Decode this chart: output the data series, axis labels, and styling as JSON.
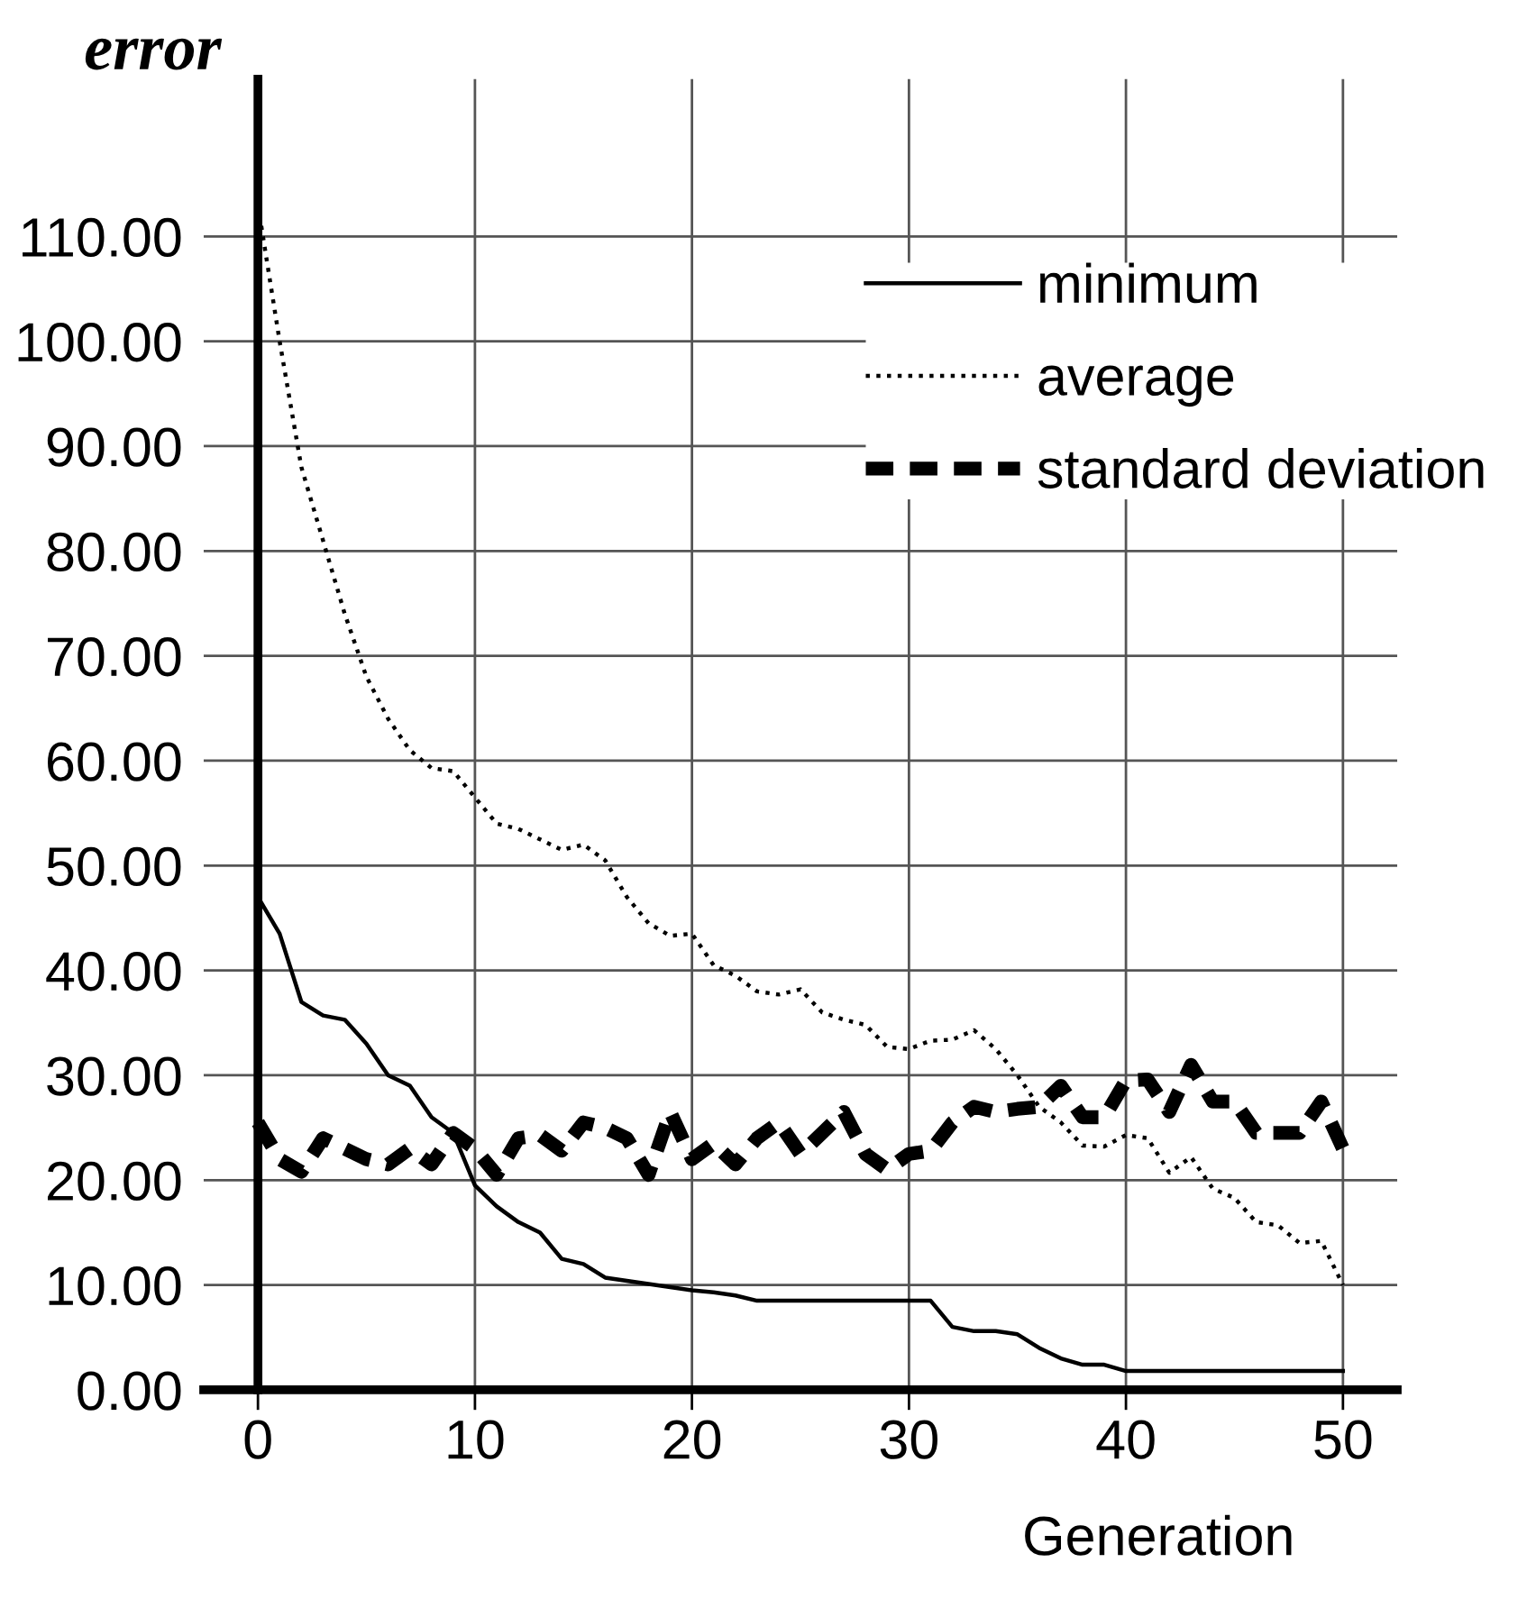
{
  "chart_data": {
    "type": "line",
    "title": "error",
    "xlabel": "Generation",
    "x": [
      0,
      1,
      2,
      3,
      4,
      5,
      6,
      7,
      8,
      9,
      10,
      11,
      12,
      13,
      14,
      15,
      16,
      17,
      18,
      19,
      20,
      21,
      22,
      23,
      24,
      25,
      26,
      27,
      28,
      29,
      30,
      31,
      32,
      33,
      34,
      35,
      36,
      37,
      38,
      39,
      40,
      41,
      42,
      43,
      44,
      45,
      46,
      47,
      48,
      49,
      50
    ],
    "series": [
      {
        "name": "minimum",
        "color": "#000000",
        "line_style": "solid",
        "values": [
          47,
          43.5,
          37,
          35.7,
          35.3,
          33,
          30,
          29,
          26,
          24.5,
          19.5,
          17.5,
          16,
          15,
          12.5,
          12,
          10.7,
          10.4,
          10.1,
          9.8,
          9.5,
          9.3,
          9.0,
          8.5,
          8.5,
          8.5,
          8.5,
          8.5,
          8.5,
          8.5,
          8.5,
          8.5,
          6,
          5.6,
          5.6,
          5.3,
          4,
          3,
          2.4,
          2.4,
          1.8,
          1.8,
          1.8,
          1.8,
          1.8,
          1.8,
          1.8,
          1.8,
          1.8,
          1.8,
          1.8
        ]
      },
      {
        "name": "average",
        "color": "#000000",
        "line_style": "dotted",
        "values": [
          113,
          100,
          88,
          81,
          74,
          68,
          64,
          61,
          59.3,
          59,
          56.5,
          54,
          53.5,
          52.5,
          51.5,
          52,
          50.5,
          47,
          44.5,
          43.3,
          43.5,
          40.5,
          39.5,
          38,
          37.7,
          38.2,
          36,
          35.3,
          34.8,
          32.7,
          32.5,
          33.3,
          33.4,
          34.3,
          32.5,
          30,
          27,
          25.5,
          23.3,
          23.2,
          24.3,
          24,
          20.7,
          22.2,
          19.2,
          18.3,
          16,
          15.7,
          14,
          14.2,
          10
        ]
      },
      {
        "name": "standard deviation",
        "color": "#000000",
        "line_style": "dashed",
        "values": [
          25.5,
          22,
          20.8,
          24,
          23,
          22,
          21.5,
          23,
          21.5,
          24.5,
          23,
          20.5,
          24,
          24.3,
          22.8,
          25.5,
          25,
          24,
          20.5,
          26.5,
          22,
          23.5,
          21.5,
          24,
          25.5,
          22.5,
          24.5,
          26.5,
          22.5,
          21,
          22.5,
          22.8,
          25.5,
          27,
          26.5,
          26.8,
          27,
          29,
          26,
          26,
          29.5,
          29.6,
          26.5,
          31,
          27.5,
          27.5,
          24.5,
          24.5,
          24.5,
          27.5,
          23
        ]
      }
    ],
    "xlim": [
      -2.5,
      52.5
    ],
    "ylim": [
      0,
      125
    ],
    "xticks": [
      0,
      10,
      20,
      30,
      40,
      50
    ],
    "yticks": [
      {
        "value": 0,
        "label": "0.00"
      },
      {
        "value": 10,
        "label": "10.00"
      },
      {
        "value": 20,
        "label": "20.00"
      },
      {
        "value": 30,
        "label": "30.00"
      },
      {
        "value": 40,
        "label": "40.00"
      },
      {
        "value": 50,
        "label": "50.00"
      },
      {
        "value": 60,
        "label": "60.00"
      },
      {
        "value": 70,
        "label": "70.00"
      },
      {
        "value": 80,
        "label": "80.00"
      },
      {
        "value": 90,
        "label": "90.00"
      },
      {
        "value": 100,
        "label": "100.00"
      },
      {
        "value": 110,
        "label": "110.00"
      }
    ],
    "grid": true,
    "legend": "top right",
    "marker": "none"
  }
}
